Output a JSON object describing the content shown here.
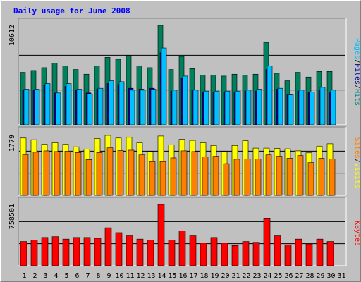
{
  "chart_data": {
    "type": "bar",
    "title": "Daily usage for June 2008",
    "days": [
      "1",
      "2",
      "3",
      "4",
      "5",
      "6",
      "7",
      "8",
      "9",
      "10",
      "11",
      "12",
      "13",
      "14",
      "15",
      "16",
      "17",
      "18",
      "19",
      "20",
      "21",
      "22",
      "23",
      "24",
      "25",
      "26",
      "27",
      "28",
      "29",
      "30",
      "31"
    ],
    "weekend_days": [
      1,
      7,
      8,
      14,
      15,
      21,
      22,
      28,
      29
    ],
    "highlight_day": 14,
    "panels": [
      {
        "id": "hits-files-pages",
        "max_label": "10612",
        "ylim": [
          0,
          10612
        ],
        "legend": [
          "Pages",
          "/",
          "Files",
          "/",
          "Hits"
        ],
        "legend_colors": [
          "#00c0ff",
          "#000000",
          "#0000a0",
          "#000000",
          "#008080"
        ],
        "series": [
          {
            "name": "Hits",
            "color": "#00805c",
            "values": [
              5600,
              5800,
              6100,
              6600,
              6300,
              5900,
              5400,
              6300,
              7200,
              7000,
              7400,
              6300,
              6100,
              10612,
              5900,
              7300,
              6000,
              5300,
              5300,
              5200,
              5400,
              5300,
              5400,
              8800,
              5500,
              4700,
              5600,
              5100,
              5700,
              5700,
              0
            ]
          },
          {
            "name": "Files",
            "color": "#0000a0",
            "values": [
              3700,
              3700,
              4200,
              3400,
              4100,
              3700,
              3400,
              3800,
              4400,
              4300,
              3900,
              3800,
              3900,
              7700,
              3600,
              5000,
              3700,
              3500,
              3500,
              3500,
              3500,
              3600,
              3600,
              5900,
              3800,
              3200,
              3600,
              3500,
              3700,
              3500,
              0
            ]
          },
          {
            "name": "Pages",
            "color": "#00c0ff",
            "values": [
              3800,
              3800,
              4400,
              3400,
              4400,
              3800,
              3300,
              3900,
              4700,
              4600,
              3700,
              3700,
              3800,
              8200,
              3700,
              5200,
              3700,
              3600,
              3600,
              3600,
              3600,
              3700,
              3800,
              6300,
              3900,
              3200,
              3700,
              3500,
              4000,
              3700,
              0
            ]
          }
        ]
      },
      {
        "id": "visits-sites",
        "max_label": "1779",
        "ylim": [
          0,
          1779
        ],
        "legend": [
          "Sites",
          "/",
          "Visits"
        ],
        "legend_colors": [
          "#ff8000",
          "#000000",
          "#ffff00"
        ],
        "series": [
          {
            "name": "Visits",
            "color": "#ffff00",
            "values": [
              1700,
              1650,
              1520,
              1560,
              1520,
              1440,
              1370,
              1680,
              1779,
              1700,
              1720,
              1560,
              1300,
              1760,
              1500,
              1660,
              1630,
              1560,
              1480,
              1300,
              1480,
              1620,
              1400,
              1400,
              1390,
              1380,
              1320,
              1260,
              1460,
              1530,
              0
            ]
          },
          {
            "name": "Sites",
            "color": "#ff8000",
            "values": [
              1210,
              1280,
              1320,
              1300,
              1310,
              1270,
              1060,
              1270,
              1410,
              1330,
              1340,
              1200,
              1000,
              1000,
              1110,
              1320,
              1300,
              1140,
              1160,
              940,
              1070,
              1080,
              1080,
              1200,
              1160,
              1100,
              1180,
              970,
              1100,
              1080,
              0
            ]
          }
        ]
      },
      {
        "id": "kbytes",
        "max_label": "758501",
        "ylim": [
          0,
          758501
        ],
        "legend": [
          "KBytes"
        ],
        "legend_colors": [
          "#ff0000"
        ],
        "series": [
          {
            "name": "KBytes",
            "color": "#ff0000",
            "values": [
              300000,
              320000,
              350000,
              360000,
              330000,
              350000,
              350000,
              340000,
              470000,
              410000,
              370000,
              330000,
              320000,
              758501,
              320000,
              430000,
              370000,
              280000,
              350000,
              280000,
              250000,
              300000,
              290000,
              590000,
              370000,
              260000,
              330000,
              270000,
              330000,
              300000,
              0
            ]
          }
        ]
      }
    ]
  }
}
